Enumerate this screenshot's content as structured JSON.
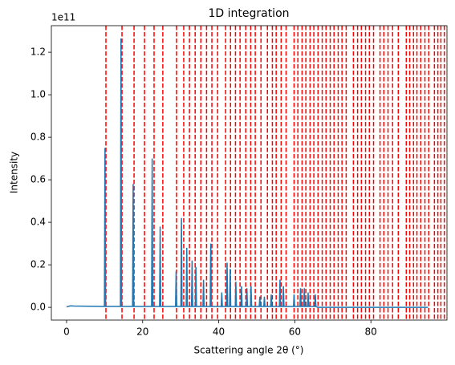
{
  "chart_data": {
    "type": "line",
    "title": "1D integration",
    "x_label": "Scattering angle 2θ (°)",
    "y_label": "Intensity",
    "y_offset_label": "1e11",
    "xlim": [
      -4,
      100
    ],
    "ylim": [
      -0.06,
      1.325
    ],
    "xticks": [
      0,
      20,
      40,
      60,
      80
    ],
    "yticks": [
      {
        "value": 0,
        "label": "0.0"
      },
      0.2,
      0.4,
      0.6,
      0.8,
      {
        "value": 1,
        "label": "1.0"
      },
      1.2
    ],
    "series": [
      {
        "color": "#1f77b4",
        "x": [
          0,
          1,
          2,
          9.95,
          10.1,
          10.25,
          14.15,
          14.3,
          14.45,
          17.35,
          17.5,
          17.65,
          22.35,
          22.5,
          22.65,
          24.45,
          24.6,
          24.75,
          28.65,
          28.8,
          28.95,
          30.05,
          30.2,
          30.35,
          31.45,
          31.6,
          31.75,
          32.85,
          33.0,
          33.15,
          33.85,
          34.0,
          34.15,
          35.85,
          36.0,
          36.15,
          37.75,
          37.9,
          38.05,
          40.65,
          40.8,
          40.95,
          42.05,
          42.2,
          42.35,
          42.85,
          43.0,
          43.15,
          44.35,
          44.5,
          44.65,
          45.85,
          46.0,
          46.15,
          47.25,
          47.4,
          47.55,
          48.35,
          48.5,
          48.65,
          50.65,
          50.8,
          50.95,
          51.85,
          52.0,
          52.15,
          53.65,
          53.8,
          53.95,
          55.95,
          56.1,
          56.25,
          56.85,
          57.0,
          57.15,
          59.65,
          59.8,
          59.95,
          61.35,
          61.5,
          61.65,
          62.35,
          62.5,
          62.65,
          63.35,
          63.5,
          63.65,
          65.25,
          65.4,
          65.55,
          66,
          95
        ],
        "values": [
          0.002,
          0.007,
          0.006,
          0.004,
          0.75,
          0.004,
          0.004,
          1.265,
          0.004,
          0.004,
          0.58,
          0.004,
          0.004,
          0.7,
          0.004,
          0.004,
          0.38,
          0.004,
          0.004,
          0.17,
          0.004,
          0.004,
          0.42,
          0.004,
          0.004,
          0.28,
          0.004,
          0.004,
          0.22,
          0.004,
          0.004,
          0.19,
          0.004,
          0.004,
          0.13,
          0.004,
          0.004,
          0.3,
          0.004,
          0.004,
          0.07,
          0.004,
          0.004,
          0.21,
          0.004,
          0.004,
          0.18,
          0.004,
          0.004,
          0.12,
          0.004,
          0.004,
          0.1,
          0.004,
          0.004,
          0.09,
          0.004,
          0.004,
          0.1,
          0.004,
          0.004,
          0.05,
          0.004,
          0.004,
          0.05,
          0.004,
          0.004,
          0.06,
          0.004,
          0.004,
          0.13,
          0.004,
          0.004,
          0.1,
          0.004,
          0.004,
          0.06,
          0.004,
          0.004,
          0.09,
          0.004,
          0.004,
          0.09,
          0.004,
          0.004,
          0.07,
          0.004,
          0.004,
          0.06,
          0.004,
          0.0,
          0.0
        ]
      }
    ],
    "vlines": {
      "color": "#ff0000",
      "x": [
        10.35,
        14.57,
        17.74,
        20.49,
        23.0,
        25.3,
        28.9,
        30.8,
        32.3,
        33.8,
        35.3,
        36.8,
        38.2,
        39.7,
        41.8,
        43.1,
        44.4,
        45.6,
        47.1,
        48.4,
        49.6,
        51.1,
        52.8,
        54.1,
        55.1,
        56.4,
        57.7,
        59.8,
        60.8,
        61.9,
        62.9,
        64.0,
        65.0,
        66.1,
        67.2,
        68.2,
        69.3,
        70.3,
        71.4,
        72.4,
        73.5,
        75.4,
        76.5,
        77.5,
        78.6,
        79.6,
        80.7,
        82.4,
        83.4,
        84.5,
        85.7,
        87.2,
        89.3,
        90.2,
        91.2,
        92.1,
        93.1,
        94.2,
        95.2,
        96.7,
        97.6,
        98.4,
        99.3
      ]
    }
  }
}
